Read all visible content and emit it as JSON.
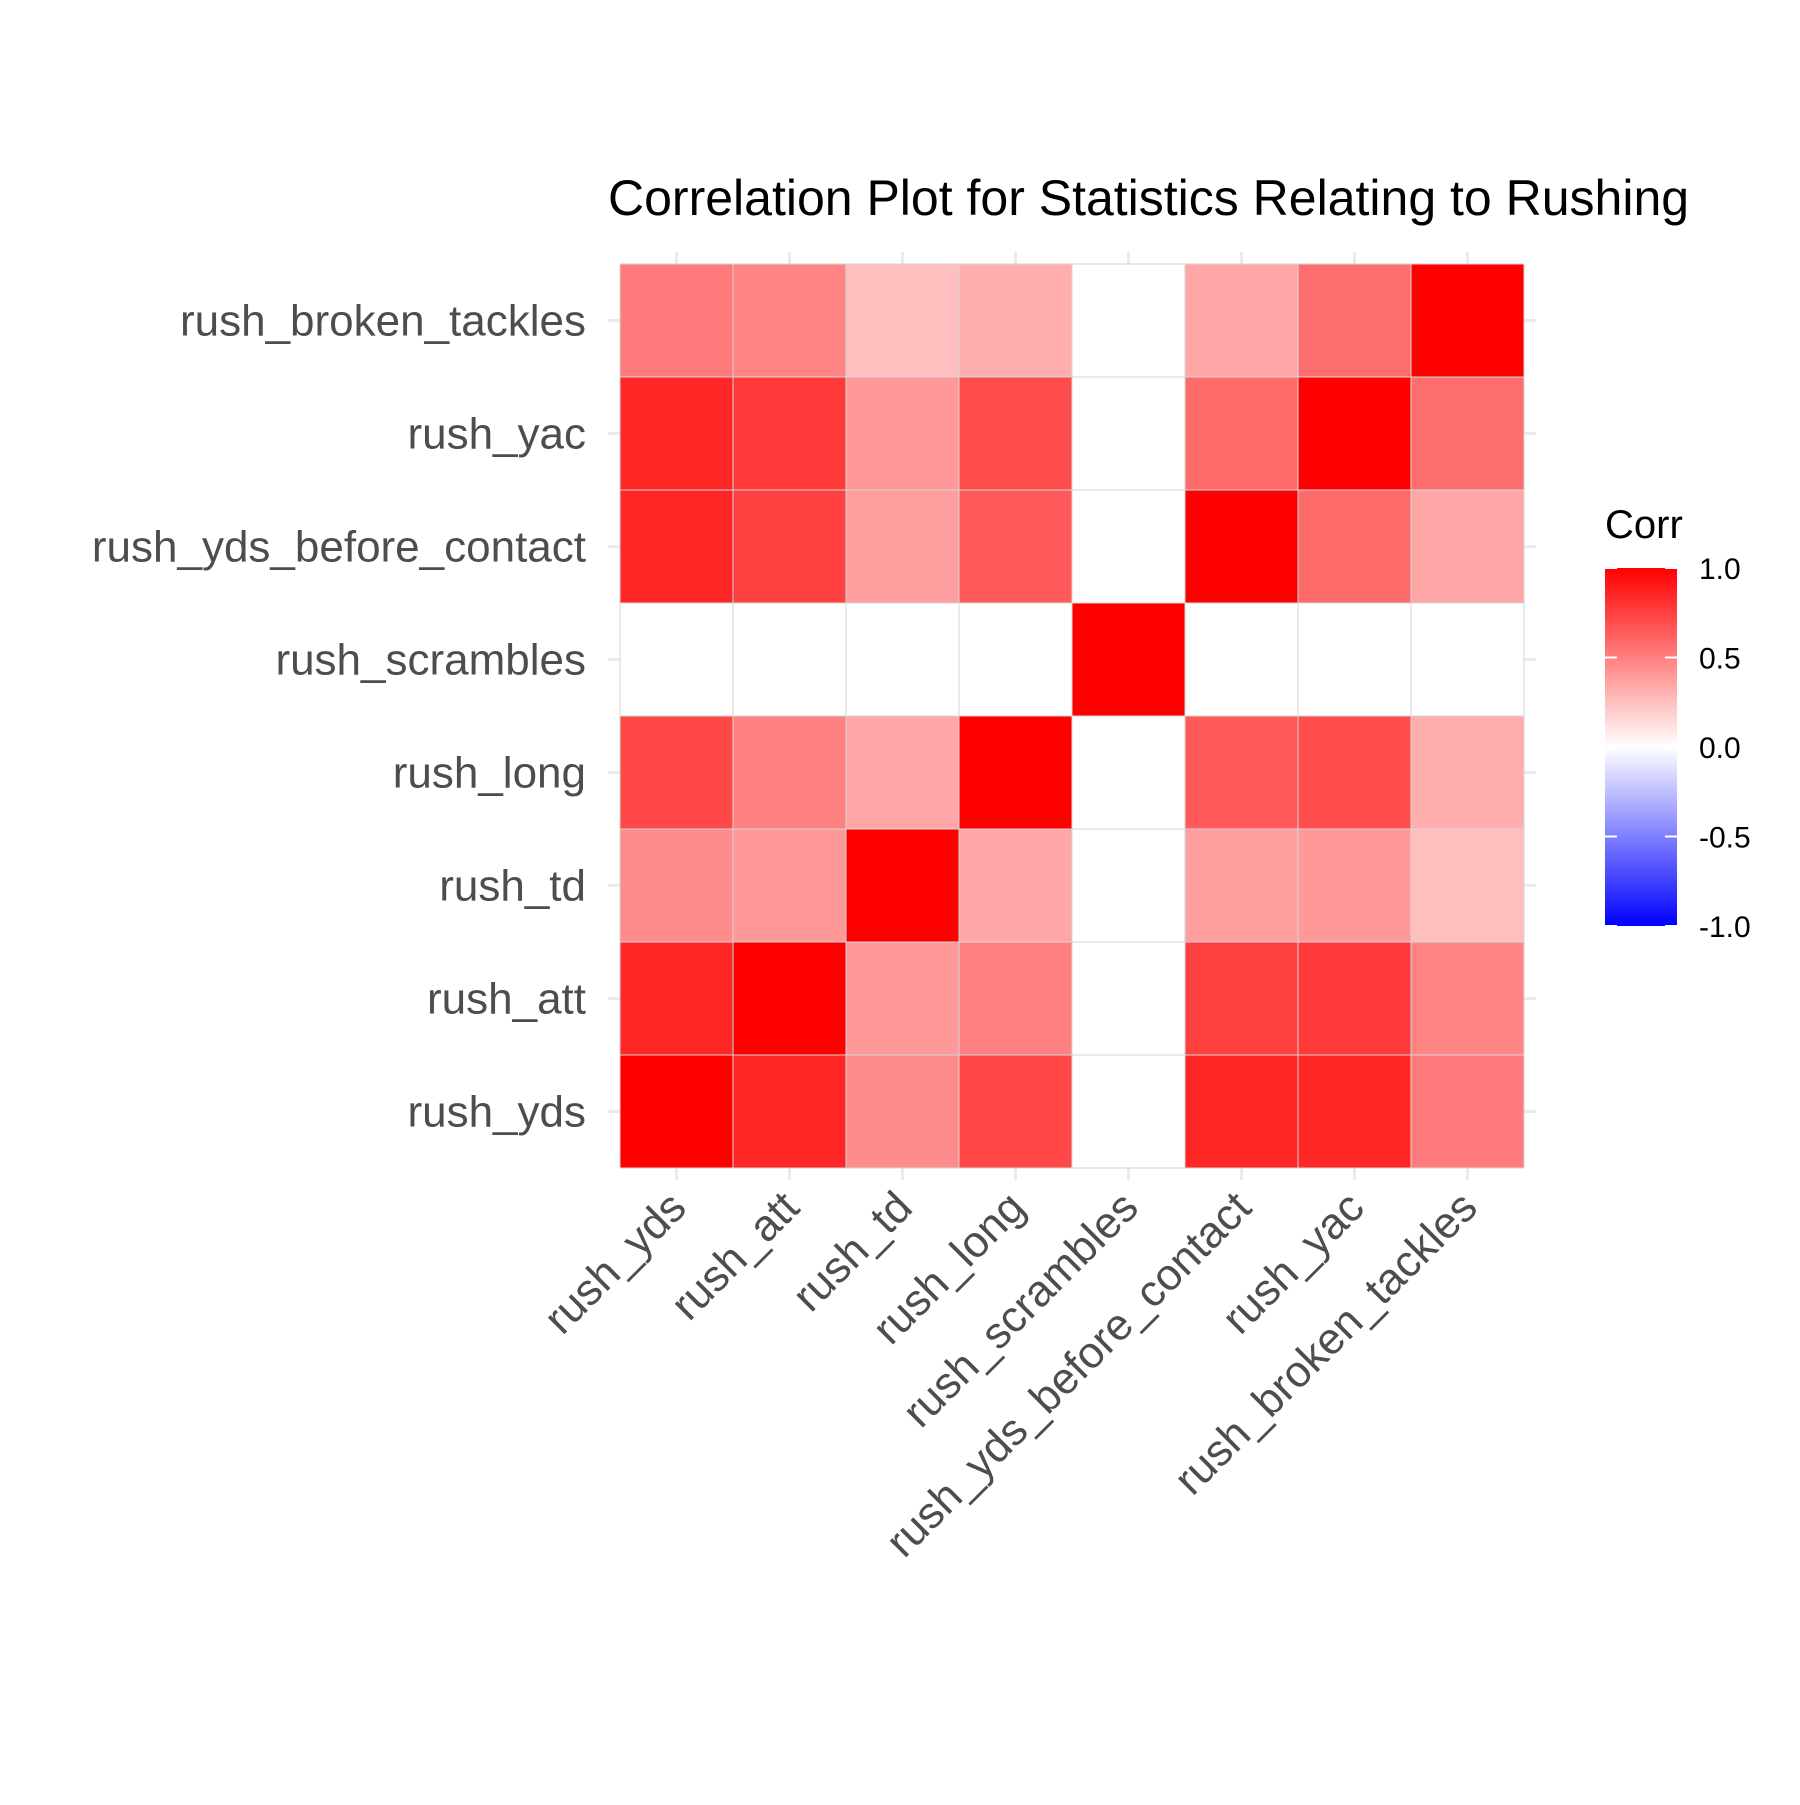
{
  "chart_data": {
    "type": "heatmap",
    "title": "Correlation Plot for Statistics Relating to Rushing",
    "variables": [
      "rush_yds",
      "rush_att",
      "rush_td",
      "rush_long",
      "rush_scrambles",
      "rush_yds_before_contact",
      "rush_yac",
      "rush_broken_tackles"
    ],
    "y_order_bottom_to_top": [
      "rush_yds",
      "rush_att",
      "rush_td",
      "rush_long",
      "rush_scrambles",
      "rush_yds_before_contact",
      "rush_yac",
      "rush_broken_tackles"
    ],
    "matrix": [
      [
        1.0,
        0.85,
        0.45,
        0.72,
        0.0,
        0.85,
        0.85,
        0.52
      ],
      [
        0.85,
        1.0,
        0.4,
        0.5,
        0.0,
        0.75,
        0.78,
        0.48
      ],
      [
        0.45,
        0.4,
        1.0,
        0.35,
        0.0,
        0.38,
        0.4,
        0.25
      ],
      [
        0.72,
        0.5,
        0.35,
        1.0,
        0.0,
        0.65,
        0.7,
        0.32
      ],
      [
        0.0,
        0.0,
        0.0,
        0.0,
        1.0,
        0.0,
        0.0,
        0.0
      ],
      [
        0.85,
        0.75,
        0.38,
        0.65,
        0.0,
        1.0,
        0.58,
        0.35
      ],
      [
        0.85,
        0.78,
        0.4,
        0.7,
        0.0,
        0.58,
        1.0,
        0.57
      ],
      [
        0.52,
        0.48,
        0.25,
        0.32,
        0.0,
        0.35,
        0.57,
        1.0
      ]
    ],
    "legend": {
      "title": "Corr",
      "ticks": [
        "1.0",
        "0.5",
        "0.0",
        "-0.5",
        "-1.0"
      ],
      "tick_values": [
        1.0,
        0.5,
        0.0,
        -0.5,
        -1.0
      ],
      "placement": "right"
    },
    "colors": {
      "low": "#0000ff",
      "mid": "#ffffff",
      "high": "#ff0000"
    },
    "value_range": [
      -1,
      1
    ],
    "grid": true
  }
}
